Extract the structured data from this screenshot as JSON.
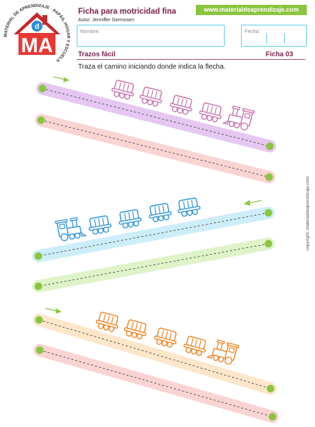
{
  "header": {
    "title": "Ficha para motricidad fina",
    "author": "Autor: Jenniffer Germosen",
    "website": "www.materialdeaprendizaje.com",
    "name_label": "Nombre:",
    "date_label": "Fecha:",
    "subtitle": "Trazos fácil",
    "sheet": "Ficha 03"
  },
  "logo": {
    "letters": "MA",
    "small_letter": "d",
    "ring_text": "MATERIAL DE APRENDIZAJE · PAPÁS, HOGAR Y ESCUELA"
  },
  "instructions": "Traza el camino iniciando donde indica la flecha.",
  "copyright": "copyright: materialdeaprendizaje.com",
  "colors": {
    "title": "#7a1f4a",
    "website_bg": "#8bc53f",
    "box_border": "#59c9e8",
    "purple_train": "#c97bb4",
    "blue_train": "#3a9ad9",
    "orange_train": "#f08a2c",
    "dot": "#8bc53f"
  }
}
